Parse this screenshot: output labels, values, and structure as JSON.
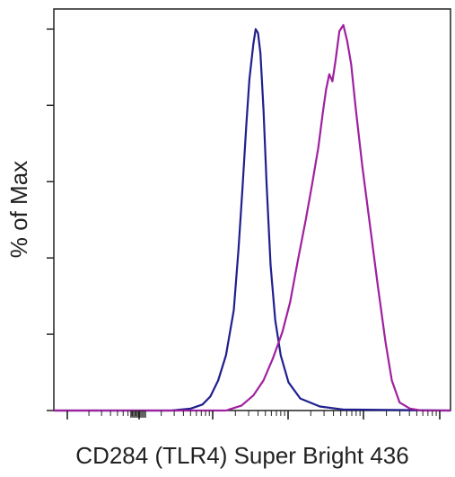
{
  "chart_data": {
    "type": "area",
    "title": "",
    "xlabel": "CD284 (TLR4) Super Bright 436",
    "ylabel": "% of Max",
    "x_scale": "log",
    "y_tick_count": 6,
    "grid": false,
    "legend": "none",
    "series": [
      {
        "color": "#1f1f8f",
        "points": [
          [
            0,
            0
          ],
          [
            150,
            0
          ],
          [
            175,
            2
          ],
          [
            190,
            6
          ],
          [
            200,
            14
          ],
          [
            210,
            30
          ],
          [
            220,
            55
          ],
          [
            230,
            100
          ],
          [
            236,
            160
          ],
          [
            241,
            220
          ],
          [
            246,
            285
          ],
          [
            250,
            330
          ],
          [
            255,
            365
          ],
          [
            258,
            380
          ],
          [
            261,
            376
          ],
          [
            264,
            356
          ],
          [
            268,
            300
          ],
          [
            272,
            225
          ],
          [
            277,
            145
          ],
          [
            283,
            90
          ],
          [
            290,
            55
          ],
          [
            300,
            28
          ],
          [
            315,
            12
          ],
          [
            340,
            4
          ],
          [
            370,
            1
          ],
          [
            507,
            0
          ]
        ]
      },
      {
        "color": "#a0209f",
        "points": [
          [
            0,
            0
          ],
          [
            220,
            0
          ],
          [
            240,
            5
          ],
          [
            255,
            15
          ],
          [
            268,
            30
          ],
          [
            280,
            52
          ],
          [
            292,
            78
          ],
          [
            302,
            108
          ],
          [
            312,
            150
          ],
          [
            322,
            190
          ],
          [
            330,
            225
          ],
          [
            338,
            262
          ],
          [
            344,
            298
          ],
          [
            348,
            320
          ],
          [
            352,
            335
          ],
          [
            356,
            328
          ],
          [
            360,
            348
          ],
          [
            365,
            378
          ],
          [
            370,
            384
          ],
          [
            375,
            368
          ],
          [
            380,
            345
          ],
          [
            386,
            300
          ],
          [
            394,
            245
          ],
          [
            404,
            185
          ],
          [
            414,
            125
          ],
          [
            424,
            68
          ],
          [
            432,
            30
          ],
          [
            442,
            8
          ],
          [
            455,
            2
          ],
          [
            470,
            0
          ],
          [
            507,
            0
          ]
        ]
      }
    ]
  }
}
